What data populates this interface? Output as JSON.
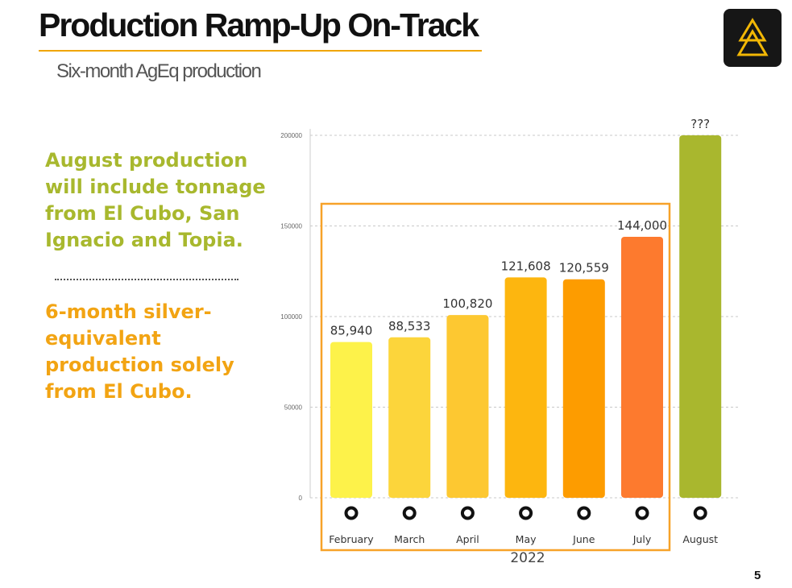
{
  "slide": {
    "title": "Production Ramp-Up On-Track",
    "subtitle": "Six-month AgEq production",
    "page_number": "5"
  },
  "side_notes": {
    "note_1": "August production\nwill include tonnage\nfrom El Cubo, San\nIgnacio and Topia.",
    "note_2": "6-month silver-\nequivalent\nproduction solely\nfrom El Cubo."
  },
  "colors": {
    "accent": "#f0a500",
    "note_1": "#a8b82e",
    "note_2": "#f2a413",
    "logo_bg": "#161616",
    "logo_mark": "#f2b705",
    "grid": "#c8c8c8",
    "highlight_box": "#f7a229"
  },
  "icons": {
    "logo": "triangle-logo-icon",
    "month_marker": "ring-icon"
  },
  "chart_data": {
    "type": "bar",
    "categories": [
      "February",
      "March",
      "April",
      "May",
      "June",
      "July",
      "August"
    ],
    "values": [
      85940,
      88533,
      100820,
      121608,
      120559,
      144000,
      200000
    ],
    "data_labels": [
      "85,940",
      "88,533",
      "100,820",
      "121,608",
      "120,559",
      "144,000",
      "???"
    ],
    "bar_colors": [
      "#fdf24a",
      "#fcd53b",
      "#fdc831",
      "#fdb60f",
      "#fd9c00",
      "#fd7a2e",
      "#a9b72e"
    ],
    "y_ticks": [
      0,
      50000,
      100000,
      150000,
      200000
    ],
    "y_tick_labels": [
      "0",
      "50000",
      "100000",
      "150000",
      "200000"
    ],
    "ylim": [
      0,
      200000
    ],
    "group_label": "2022",
    "highlight": {
      "from": "February",
      "to": "July"
    },
    "grid": true,
    "grid_style": "dashed-horizontal"
  }
}
